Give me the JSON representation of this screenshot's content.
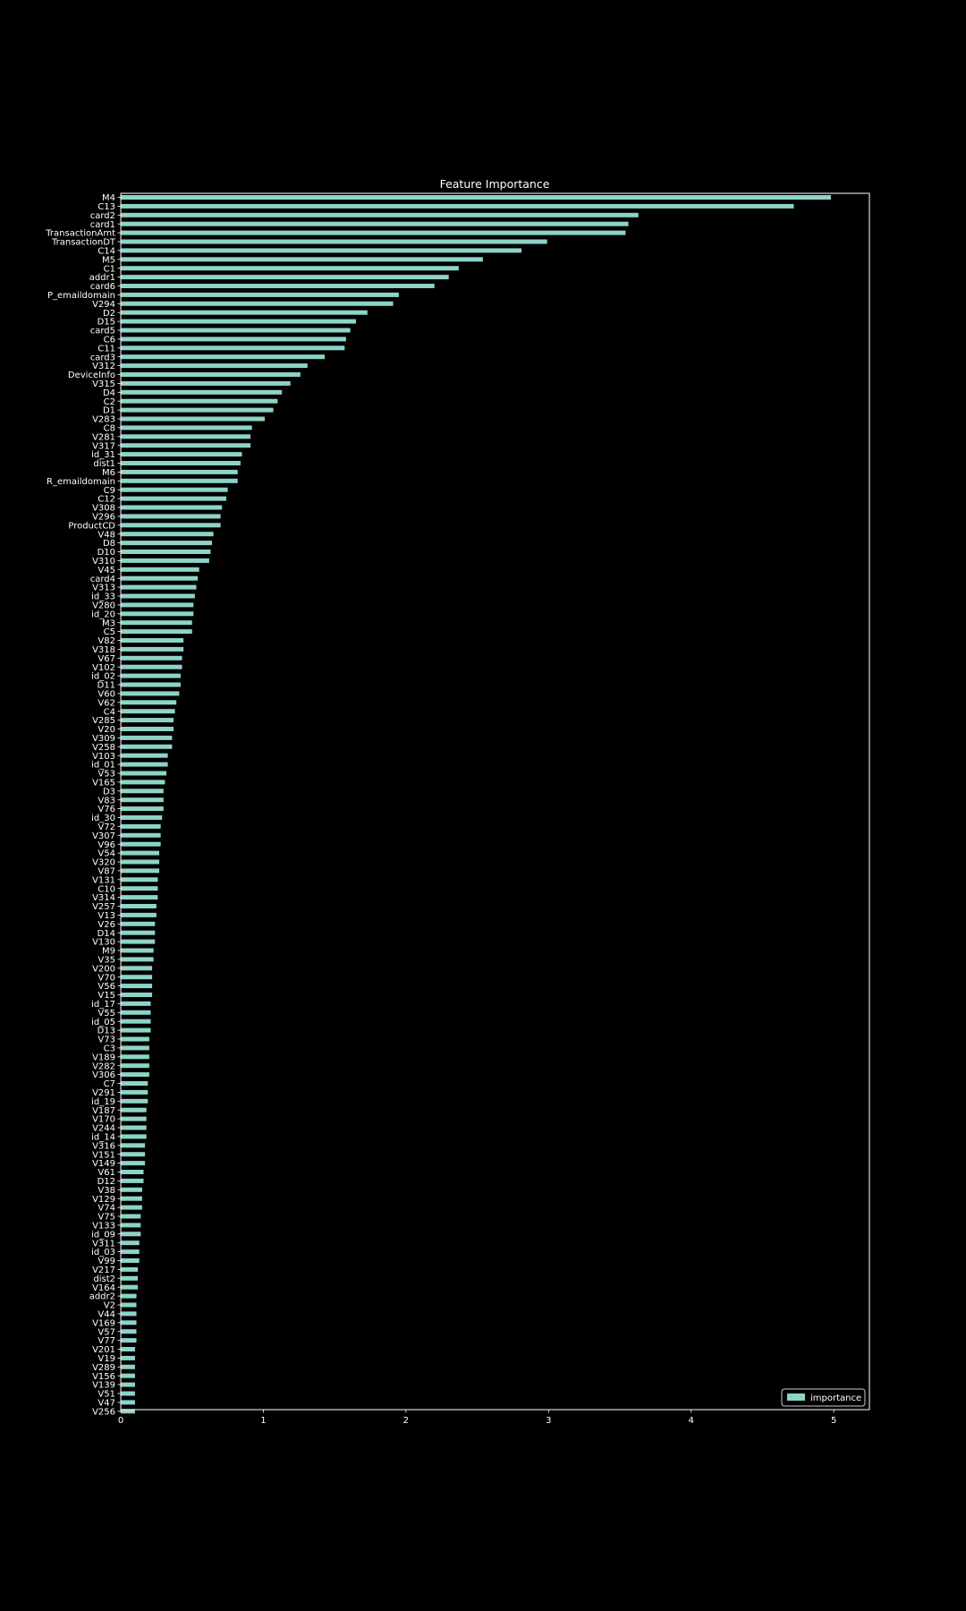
{
  "chart_data": {
    "type": "bar",
    "orientation": "horizontal",
    "title": "Feature Importance",
    "xlabel": "",
    "ylabel": "",
    "xlim": [
      0,
      5.25
    ],
    "xticks": [
      0,
      1,
      2,
      3,
      4,
      5
    ],
    "xtick_labels": [
      "0",
      "1",
      "2",
      "3",
      "4",
      "5"
    ],
    "grid": false,
    "legend_position": "bottom-right",
    "bar_color": "#8dd3c7",
    "series": [
      {
        "name": "importance",
        "categories": [
          "M4",
          "C13",
          "card2",
          "card1",
          "TransactionAmt",
          "TransactionDT",
          "C14",
          "M5",
          "C1",
          "addr1",
          "card6",
          "P_emaildomain",
          "V294",
          "D2",
          "D15",
          "card5",
          "C6",
          "C11",
          "card3",
          "V312",
          "DeviceInfo",
          "V315",
          "D4",
          "C2",
          "D1",
          "V283",
          "C8",
          "V281",
          "V317",
          "id_31",
          "dist1",
          "M6",
          "R_emaildomain",
          "C9",
          "C12",
          "V308",
          "V296",
          "ProductCD",
          "V48",
          "D8",
          "D10",
          "V310",
          "V45",
          "card4",
          "V313",
          "id_33",
          "V280",
          "id_20",
          "M3",
          "C5",
          "V82",
          "V318",
          "V67",
          "V102",
          "id_02",
          "D11",
          "V60",
          "V62",
          "C4",
          "V285",
          "V20",
          "V309",
          "V258",
          "V103",
          "id_01",
          "V53",
          "V165",
          "D3",
          "V83",
          "V76",
          "id_30",
          "V72",
          "V307",
          "V96",
          "V54",
          "V320",
          "V87",
          "V131",
          "C10",
          "V314",
          "V257",
          "V13",
          "V26",
          "D14",
          "V130",
          "M9",
          "V35",
          "V200",
          "V70",
          "V56",
          "V15",
          "id_17",
          "V55",
          "id_05",
          "D13",
          "V73",
          "C3",
          "V189",
          "V282",
          "V306",
          "C7",
          "V291",
          "id_19",
          "V187",
          "V170",
          "V244",
          "id_14",
          "V316",
          "V151",
          "V149",
          "V61",
          "D12",
          "V38",
          "V129",
          "V74",
          "V75",
          "V133",
          "id_09",
          "V311",
          "id_03",
          "V99",
          "V217",
          "dist2",
          "V164",
          "addr2",
          "V2",
          "V44",
          "V169",
          "V57",
          "V77",
          "V201",
          "V19",
          "V289",
          "V156",
          "V139",
          "V51",
          "V47",
          "V256"
        ],
        "values": [
          4.98,
          4.72,
          3.63,
          3.56,
          3.54,
          2.99,
          2.81,
          2.54,
          2.37,
          2.3,
          2.2,
          1.95,
          1.91,
          1.73,
          1.65,
          1.61,
          1.58,
          1.57,
          1.43,
          1.31,
          1.26,
          1.19,
          1.13,
          1.1,
          1.07,
          1.01,
          0.92,
          0.91,
          0.91,
          0.85,
          0.84,
          0.82,
          0.82,
          0.75,
          0.74,
          0.71,
          0.7,
          0.7,
          0.65,
          0.64,
          0.63,
          0.62,
          0.55,
          0.54,
          0.53,
          0.52,
          0.51,
          0.51,
          0.5,
          0.5,
          0.44,
          0.44,
          0.43,
          0.43,
          0.42,
          0.42,
          0.41,
          0.39,
          0.38,
          0.37,
          0.37,
          0.36,
          0.36,
          0.33,
          0.33,
          0.32,
          0.31,
          0.3,
          0.3,
          0.3,
          0.29,
          0.28,
          0.28,
          0.28,
          0.27,
          0.27,
          0.27,
          0.26,
          0.26,
          0.26,
          0.25,
          0.25,
          0.24,
          0.24,
          0.24,
          0.23,
          0.23,
          0.22,
          0.22,
          0.22,
          0.22,
          0.21,
          0.21,
          0.21,
          0.21,
          0.2,
          0.2,
          0.2,
          0.2,
          0.2,
          0.19,
          0.19,
          0.19,
          0.18,
          0.18,
          0.18,
          0.18,
          0.17,
          0.17,
          0.17,
          0.16,
          0.16,
          0.15,
          0.15,
          0.15,
          0.14,
          0.14,
          0.14,
          0.13,
          0.13,
          0.13,
          0.12,
          0.12,
          0.12,
          0.11,
          0.11,
          0.11,
          0.11,
          0.11,
          0.11,
          0.1,
          0.1,
          0.1,
          0.1,
          0.1,
          0.1,
          0.1,
          0.1
        ]
      }
    ]
  }
}
